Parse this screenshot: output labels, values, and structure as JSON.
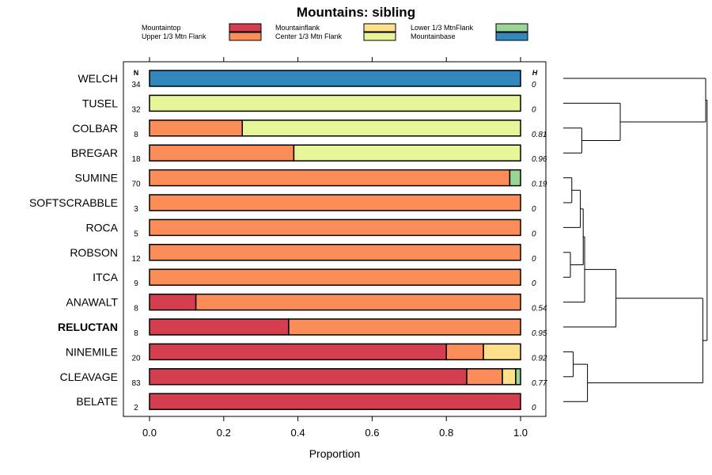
{
  "chart_data": {
    "type": "bar",
    "orientation": "horizontal",
    "stacked": true,
    "title": "Mountains: sibling",
    "xlabel": "Proportion",
    "xlim": [
      0,
      1
    ],
    "x_ticks": [
      "0.0",
      "0.2",
      "0.4",
      "0.6",
      "0.8",
      "1.0"
    ],
    "n_header": "N",
    "h_header": "H",
    "legend": [
      {
        "name": "Mountaintop",
        "color": "#D53E4F"
      },
      {
        "name": "Upper 1/3 Mtn Flank",
        "color": "#FC8D59"
      },
      {
        "name": "Mountainflank",
        "color": "#FEE08B"
      },
      {
        "name": "Center 1/3 Mtn Flank",
        "color": "#E6F598"
      },
      {
        "name": "Lower 1/3 MtnFlank",
        "color": "#99D594"
      },
      {
        "name": "Mountainbase",
        "color": "#3288BD"
      }
    ],
    "categories": [
      "WELCH",
      "TUSEL",
      "COLBAR",
      "BREGAR",
      "SUMINE",
      "SOFTSCRABBLE",
      "ROCA",
      "ROBSON",
      "ITCA",
      "ANAWALT",
      "RELUCTAN",
      "NINEMILE",
      "CLEAVAGE",
      "BELATE"
    ],
    "highlight": "RELUCTAN",
    "n": [
      "34",
      "32",
      "8",
      "18",
      "70",
      "3",
      "5",
      "12",
      "9",
      "8",
      "8",
      "20",
      "83",
      "2"
    ],
    "h": [
      "0",
      "0",
      "0.81",
      "0.96",
      "0.19",
      "0",
      "0",
      "0",
      "0",
      "0.54",
      "0.95",
      "0.92",
      "0.77",
      "0"
    ],
    "series": [
      {
        "name": "Mountaintop",
        "values": [
          0,
          0,
          0,
          0,
          0,
          0,
          0,
          0,
          0,
          0.125,
          0.375,
          0.8,
          0.855,
          1
        ]
      },
      {
        "name": "Upper 1/3 Mtn Flank",
        "values": [
          0,
          0,
          0.25,
          0.389,
          0.971,
          1,
          1,
          1,
          1,
          0.875,
          0.625,
          0.1,
          0.096,
          0
        ]
      },
      {
        "name": "Mountainflank",
        "values": [
          0,
          0,
          0,
          0,
          0,
          0,
          0,
          0,
          0,
          0,
          0,
          0.1,
          0.036,
          0
        ]
      },
      {
        "name": "Center 1/3 Mtn Flank",
        "values": [
          0,
          1,
          0.75,
          0.611,
          0,
          0,
          0,
          0,
          0,
          0,
          0,
          0,
          0,
          0
        ]
      },
      {
        "name": "Lower 1/3 MtnFlank",
        "values": [
          0,
          0,
          0,
          0,
          0.029,
          0,
          0,
          0,
          0,
          0,
          0,
          0,
          0.013,
          0
        ]
      },
      {
        "name": "Mountainbase",
        "values": [
          1,
          0,
          0,
          0,
          0,
          0,
          0,
          0,
          0,
          0,
          0,
          0,
          0,
          0
        ]
      }
    ],
    "dendrogram": {
      "merges": [
        {
          "a": "ITCA",
          "b": "ROBSON",
          "height": 0.05
        },
        {
          "a": "SUMINE",
          "b": "SOFTSCRABBLE",
          "height": 0.06
        },
        {
          "a": "NINEMILE",
          "b": "CLEAVAGE",
          "height": 0.07
        },
        {
          "a": "m1",
          "b": "ROCA",
          "height": 0.12
        },
        {
          "a": "m3",
          "b": "m0",
          "height": 0.14
        },
        {
          "a": "COLBAR",
          "b": "BREGAR",
          "height": 0.13
        },
        {
          "a": "m4",
          "b": "ANAWALT",
          "height": 0.15
        },
        {
          "a": "m5",
          "b": "TUSEL",
          "height": 0.4
        },
        {
          "a": "m2",
          "b": "BELATE",
          "height": 0.17
        },
        {
          "a": "m6",
          "b": "RELUCTAN",
          "height": 0.37
        },
        {
          "a": "WELCH",
          "b": "m7",
          "height": 1.0
        },
        {
          "a": "m9",
          "b": "m8",
          "height": 0.98
        },
        {
          "a": "m10",
          "b": "m11",
          "height": 1.01
        }
      ]
    }
  }
}
